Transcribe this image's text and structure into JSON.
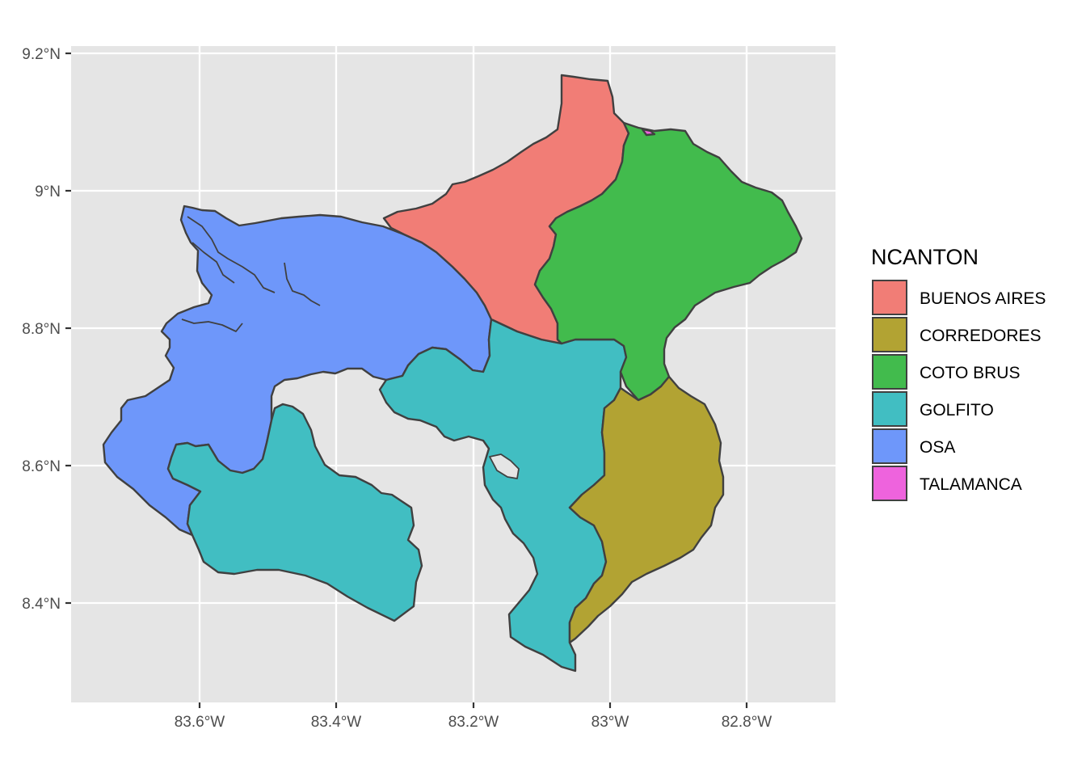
{
  "chart_data": {
    "type": "choropleth map",
    "x_ticks": [
      "83.6°W",
      "83.4°W",
      "83.2°W",
      "83°W",
      "82.8°W"
    ],
    "y_ticks": [
      "9.2°N",
      "9°N",
      "8.8°N",
      "8.6°N",
      "8.4°N"
    ],
    "grid": true,
    "legend_position": "right",
    "legend": {
      "title": "NCANTON",
      "items": [
        {
          "name": "BUENOS AIRES",
          "color": "#F17D76"
        },
        {
          "name": "CORREDORES",
          "color": "#B2A333"
        },
        {
          "name": "COTO BRUS",
          "color": "#42BB4D"
        },
        {
          "name": "GOLFITO",
          "color": "#41BEC2"
        },
        {
          "name": "OSA",
          "color": "#6E97FA"
        },
        {
          "name": "TALAMANCA",
          "color": "#EE63DD"
        }
      ]
    }
  },
  "colors": {
    "panel_background": "#E5E5E5",
    "grid_line": "#FFFFFF",
    "border": "#404040"
  }
}
